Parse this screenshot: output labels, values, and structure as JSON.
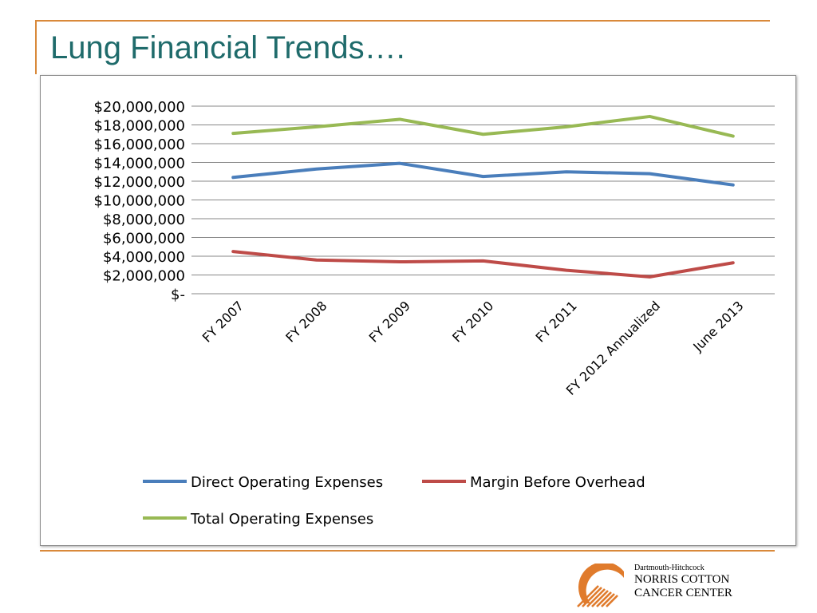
{
  "slide": {
    "title": "Lung Financial Trends…."
  },
  "logo": {
    "line1": "Dartmouth-Hitchcock",
    "line2": "NORRIS COTTON",
    "line3": "CANCER CENTER"
  },
  "colors": {
    "accent_rule": "#d9893a",
    "title": "#1f6b6b",
    "series_direct": "#4a7ebb",
    "series_margin": "#be4b48",
    "series_total": "#98b954",
    "gridline": "#878787"
  },
  "chart_data": {
    "type": "line",
    "title": "",
    "xlabel": "",
    "ylabel": "",
    "categories": [
      "FY 2007",
      "FY 2008",
      "FY 2009",
      "FY 2010",
      "FY 2011",
      "FY 2012 Annualized",
      "June 2013"
    ],
    "ylim": [
      0,
      20000000
    ],
    "y_ticks": [
      0,
      2000000,
      4000000,
      6000000,
      8000000,
      10000000,
      12000000,
      14000000,
      16000000,
      18000000,
      20000000
    ],
    "y_tick_labels": [
      "$-",
      "$2,000,000",
      "$4,000,000",
      "$6,000,000",
      "$8,000,000",
      "$10,000,000",
      "$12,000,000",
      "$14,000,000",
      "$16,000,000",
      "$18,000,000",
      "$20,000,000"
    ],
    "grid": true,
    "legend_position": "bottom",
    "series": [
      {
        "name": "Direct Operating Expenses",
        "color": "#4a7ebb",
        "values": [
          12400000,
          13300000,
          13900000,
          12500000,
          13000000,
          12800000,
          11600000
        ]
      },
      {
        "name": "Margin Before Overhead",
        "color": "#be4b48",
        "values": [
          4500000,
          3600000,
          3400000,
          3500000,
          2500000,
          1800000,
          3300000
        ]
      },
      {
        "name": "Total Operating Expenses",
        "color": "#98b954",
        "values": [
          17100000,
          17800000,
          18600000,
          17000000,
          17800000,
          18900000,
          16800000
        ]
      }
    ]
  }
}
